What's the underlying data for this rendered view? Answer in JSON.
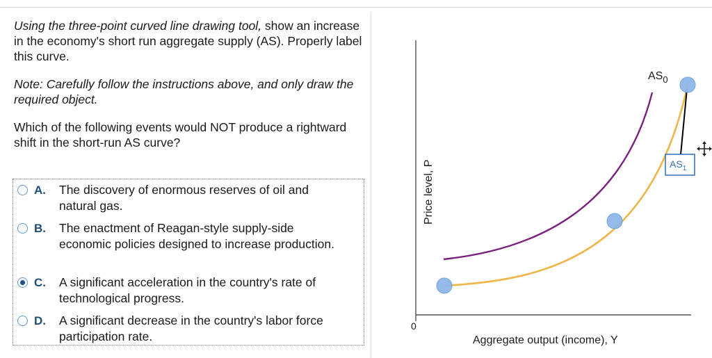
{
  "instructions": {
    "part1_italic": "Using the three-point curved line drawing tool,",
    "part2": " show an increase in the economy's short run aggregate supply (AS). Properly label this curve.",
    "note": "Note: Carefully follow the instructions above, and only draw the required object.",
    "question": "Which of the following events would NOT produce a rightward shift in the short-run AS curve?"
  },
  "choices": [
    {
      "letter": "A.",
      "text": "The discovery of enormous reserves of oil and natural gas.",
      "selected": false
    },
    {
      "letter": "B.",
      "text": "The enactment of Reagan-style supply-side economic policies designed to increase production.",
      "selected": false
    },
    {
      "letter": "C.",
      "text": "A significant acceleration in the country's rate of technological progress.",
      "selected": true
    },
    {
      "letter": "D.",
      "text": "A significant decrease in the country's labor force participation rate.",
      "selected": false
    }
  ],
  "graph": {
    "y_axis_label": "Price level, P",
    "x_axis_label": "Aggregate output (income), Y",
    "origin_label": "0",
    "curve_as0_label": "AS",
    "curve_as0_subscript": "0",
    "curve_as1_label": "AS",
    "curve_as1_subscript": "1",
    "colors": {
      "as0": "#7b1f7f",
      "as1": "#f0b54a",
      "handle": "#8fb8e8",
      "label_box": "#2e6fb7"
    },
    "icons": [
      "move-icon"
    ]
  }
}
